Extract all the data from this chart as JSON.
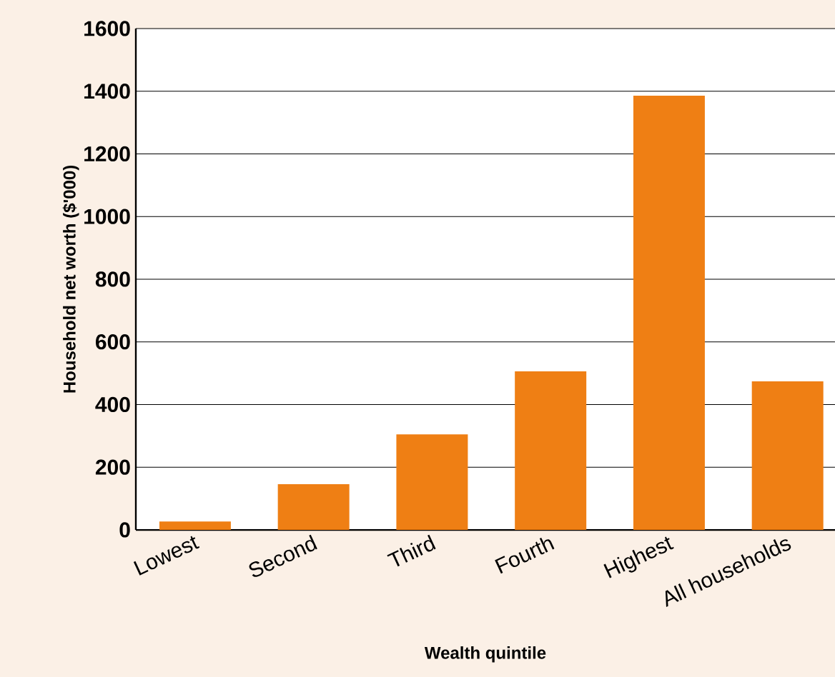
{
  "chart_data": {
    "type": "bar",
    "xlabel": "Wealth quintile",
    "ylabel": "Household net worth ($'000)",
    "categories": [
      "Lowest",
      "Second",
      "Third",
      "Fourth",
      "Highest",
      "All households"
    ],
    "values": [
      27,
      146,
      305,
      506,
      1386,
      474
    ],
    "color": "#ef7f14",
    "ylim": [
      0,
      1600
    ],
    "yticks": [
      0,
      200,
      400,
      600,
      800,
      1000,
      1200,
      1400,
      1600
    ],
    "grid": "y"
  }
}
